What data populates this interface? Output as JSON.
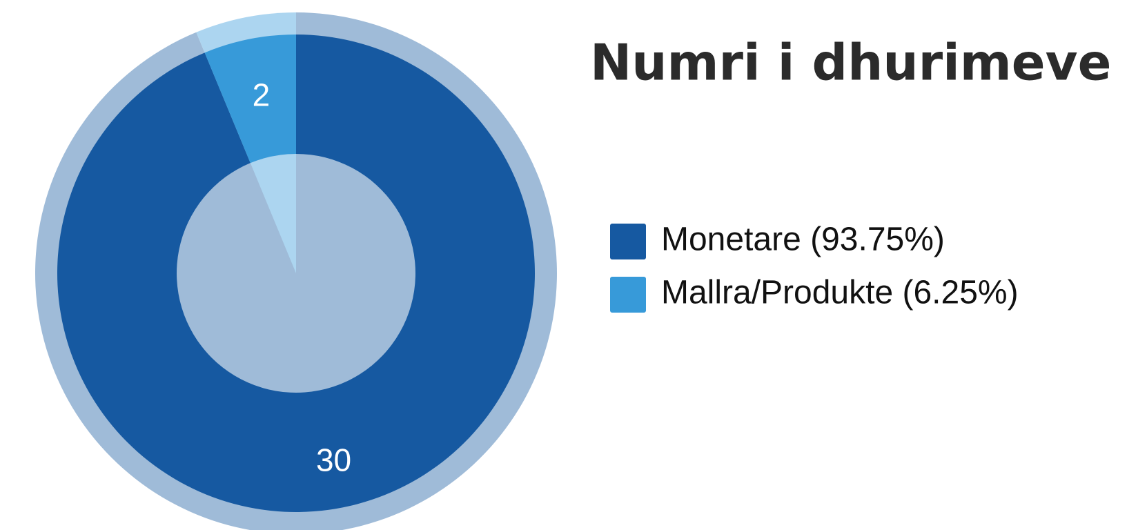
{
  "chart_data": {
    "type": "pie",
    "title": "Numri i dhurimeve",
    "categories": [
      "Monetare (93.75%)",
      "Mallra/Produkte (6.25%)"
    ],
    "values": [
      30,
      2
    ],
    "colors": [
      "#1659a1",
      "#379ad9"
    ]
  }
}
